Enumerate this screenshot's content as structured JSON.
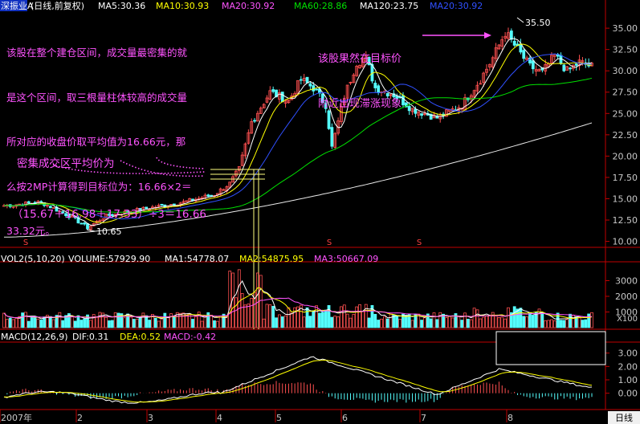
{
  "price_header": {
    "title": "深振业A",
    "period": "(日线,前复权)",
    "ma5": "MA5:30.36",
    "ma10": "MA10:30.93",
    "ma20": "MA20:30.92",
    "ma60": "MA60:28.86",
    "ma120": "MA120:23.75",
    "ma20b": "MA20:30.92"
  },
  "volume_header": {
    "name": "VOL2(5,10,20)",
    "volume": "VOLUME:57929.90",
    "ma1": "MA1:54778.07",
    "ma2": "MA2:54875.95",
    "ma3": "MA3:50667.09"
  },
  "macd_header": {
    "name": "MACD(12,26,9)",
    "dif": "DIF:0.31",
    "dea": "DEA:0.52",
    "macd": "MACD:-0.42"
  },
  "annotations": {
    "top_left": [
      "该股在整个建仓区间，成交量最密集的就",
      "是这个区间，取三根量柱体较高的成交量",
      "所对应的收盘价取平均值为16.66元，那",
      "么按2MP计算得到目标位为：16.66×2＝",
      "33.32元。"
    ],
    "middle": [
      "密集成交区平均价为",
      "（15.67＋16.98＋17.33）÷3＝16.66"
    ],
    "top_right": [
      "该股果然在目标价",
      "附近出现滞涨现象"
    ],
    "high_label": "35.50",
    "low_label": "10.65"
  },
  "x_axis": {
    "labels": [
      "2007年",
      "2",
      "3",
      "4",
      "5",
      "6",
      "7",
      "8"
    ],
    "period_button": "日线"
  },
  "colors": {
    "up": "#ff5050",
    "down": "#54fcfc",
    "ma5": "#ffffff",
    "ma10": "#ffff00",
    "ma20": "#ff54ff",
    "ma60": "#00e000",
    "ma120": "#e8e8e8",
    "annotation": "#ff54ff",
    "axis": "#c00000"
  },
  "chart_data": [
    {
      "type": "candlestick",
      "title": "深振业A",
      "y_ticks": [
        "35.00",
        "32.50",
        "30.00",
        "27.50",
        "25.00",
        "22.50",
        "20.00",
        "17.50",
        "15.00",
        "12.50",
        "10.00"
      ],
      "ylim": [
        9.3,
        36.8
      ],
      "high": 35.5,
      "low": 10.65,
      "key_prices": [
        15.67,
        16.98,
        17.33
      ],
      "average_price": 16.66,
      "target_price": 33.32,
      "anchors": [
        [
          0,
          14.2
        ],
        [
          12,
          14.6
        ],
        [
          22,
          12.8
        ],
        [
          27,
          11.6
        ],
        [
          33,
          13
        ],
        [
          45,
          13.8
        ],
        [
          58,
          14.6
        ],
        [
          68,
          15.5
        ],
        [
          73,
          16.8
        ],
        [
          76,
          18.5
        ],
        [
          80,
          24
        ],
        [
          86,
          27.5
        ],
        [
          92,
          26.5
        ],
        [
          96,
          29
        ],
        [
          100,
          28
        ],
        [
          104,
          26
        ],
        [
          106,
          21
        ],
        [
          110,
          27
        ],
        [
          114,
          31
        ],
        [
          117,
          31.5
        ],
        [
          120,
          28
        ],
        [
          126,
          27.2
        ],
        [
          132,
          25.5
        ],
        [
          140,
          24.5
        ],
        [
          148,
          26
        ],
        [
          154,
          29
        ],
        [
          158,
          31.5
        ],
        [
          162,
          34.5
        ],
        [
          165,
          33
        ],
        [
          170,
          30.5
        ],
        [
          174,
          29.8
        ],
        [
          178,
          31.8
        ],
        [
          182,
          30
        ],
        [
          186,
          31
        ],
        [
          190,
          30.5
        ]
      ]
    },
    {
      "type": "bar",
      "title": "VOL2(5,10,20)",
      "y_ticks": [
        "3000",
        "2000",
        "1000"
      ],
      "unit": "X100",
      "ylim": [
        0,
        4000
      ],
      "peak": 3700
    },
    {
      "type": "bar",
      "title": "MACD(12,26,9)",
      "y_ticks": [
        "3.00",
        "2.00",
        "1.00",
        "0.00"
      ],
      "ylim": [
        -1.1,
        3.7
      ],
      "dif_peak": 2.8
    }
  ]
}
